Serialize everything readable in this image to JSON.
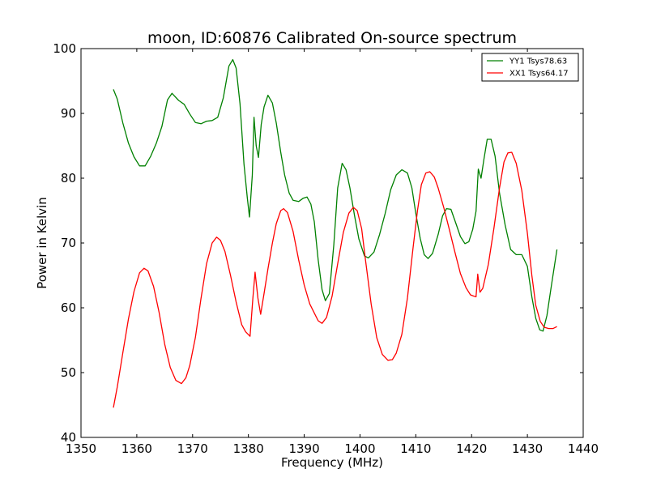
{
  "chart_data": {
    "type": "line",
    "title": "moon, ID:60876 Calibrated On-source spectrum",
    "xlabel": "Frequency (MHz)",
    "ylabel": "Power in Kelvin",
    "xlim": [
      1350,
      1440
    ],
    "ylim": [
      40,
      100
    ],
    "xticks": [
      1350,
      1360,
      1370,
      1380,
      1390,
      1400,
      1410,
      1420,
      1430,
      1440
    ],
    "yticks": [
      40,
      50,
      60,
      70,
      80,
      90,
      100
    ],
    "grid": false,
    "legend_position": "upper-right",
    "series": [
      {
        "name": "YY1 Tsys78.63",
        "color": "#008000",
        "x": [
          1355.8,
          1356.5,
          1357.5,
          1358.5,
          1359.5,
          1360.5,
          1361.5,
          1362.5,
          1363.5,
          1364.5,
          1365.5,
          1366.3,
          1367.5,
          1368.5,
          1369.5,
          1370.5,
          1371.5,
          1372.5,
          1373.5,
          1374.5,
          1375.5,
          1376.5,
          1377.2,
          1377.8,
          1378.5,
          1379.2,
          1379.8,
          1380.2,
          1380.7,
          1381.0,
          1381.4,
          1381.8,
          1382.3,
          1382.8,
          1383.5,
          1384.3,
          1385.0,
          1385.8,
          1386.5,
          1387.3,
          1388.0,
          1389.0,
          1389.8,
          1390.5,
          1391.2,
          1391.8,
          1392.5,
          1393.2,
          1393.8,
          1394.5,
          1395.3,
          1396.0,
          1396.8,
          1397.5,
          1398.2,
          1399.0,
          1399.8,
          1400.8,
          1401.5,
          1402.5,
          1403.5,
          1404.5,
          1405.5,
          1406.5,
          1407.5,
          1408.5,
          1409.3,
          1410.0,
          1410.8,
          1411.5,
          1412.2,
          1413.0,
          1414.0,
          1414.8,
          1415.5,
          1416.3,
          1417.2,
          1418.0,
          1418.8,
          1419.5,
          1420.2,
          1420.8,
          1421.2,
          1421.7,
          1422.2,
          1422.8,
          1423.5,
          1424.2,
          1425.0,
          1426.0,
          1427.0,
          1428.0,
          1429.0,
          1430.0,
          1430.8,
          1431.5,
          1432.2,
          1432.8,
          1433.5,
          1434.3,
          1435.3
        ],
        "values": [
          93.7,
          92.2,
          88.5,
          85.4,
          83.3,
          81.9,
          81.9,
          83.4,
          85.4,
          88.0,
          92.1,
          93.1,
          92.0,
          91.4,
          89.9,
          88.6,
          88.4,
          88.8,
          88.9,
          89.4,
          92.4,
          97.3,
          98.3,
          97.0,
          91.5,
          82.2,
          77.0,
          74.0,
          80.5,
          89.4,
          85.0,
          83.2,
          88.3,
          91.0,
          92.8,
          91.6,
          88.5,
          84.0,
          80.5,
          77.7,
          76.6,
          76.4,
          76.9,
          77.1,
          76.0,
          73.3,
          67.4,
          62.8,
          61.1,
          62.2,
          69.7,
          78.5,
          82.3,
          81.3,
          78.5,
          74.3,
          70.6,
          68.0,
          67.7,
          68.6,
          71.3,
          74.5,
          78.2,
          80.5,
          81.3,
          80.8,
          78.5,
          74.6,
          70.7,
          68.2,
          67.6,
          68.4,
          71.3,
          74.2,
          75.3,
          75.2,
          73.0,
          71.0,
          69.9,
          70.2,
          72.1,
          74.9,
          81.4,
          80.0,
          82.9,
          86.0,
          86.0,
          83.4,
          77.7,
          72.8,
          69.0,
          68.2,
          68.2,
          66.4,
          61.7,
          58.4,
          56.6,
          56.4,
          58.8,
          63.4,
          69.0
        ]
      },
      {
        "name": "XX1 Tsys64.17",
        "color": "#ff0000",
        "x": [
          1355.8,
          1356.5,
          1357.5,
          1358.5,
          1359.5,
          1360.5,
          1361.3,
          1362.0,
          1363.0,
          1364.0,
          1365.0,
          1366.0,
          1367.0,
          1368.0,
          1368.8,
          1369.5,
          1370.5,
          1371.5,
          1372.5,
          1373.5,
          1374.3,
          1375.0,
          1375.8,
          1376.8,
          1377.8,
          1378.8,
          1379.5,
          1380.3,
          1380.8,
          1381.2,
          1381.7,
          1382.2,
          1382.8,
          1383.5,
          1384.3,
          1385.0,
          1385.8,
          1386.3,
          1387.0,
          1388.0,
          1389.0,
          1390.0,
          1391.0,
          1391.8,
          1392.5,
          1393.2,
          1394.0,
          1395.0,
          1396.0,
          1397.0,
          1398.0,
          1398.8,
          1399.5,
          1400.3,
          1401.0,
          1402.0,
          1403.0,
          1404.0,
          1405.0,
          1405.8,
          1406.5,
          1407.5,
          1408.5,
          1409.5,
          1410.3,
          1411.0,
          1411.8,
          1412.5,
          1413.3,
          1414.0,
          1415.0,
          1416.0,
          1417.0,
          1418.0,
          1419.0,
          1419.8,
          1420.4,
          1420.8,
          1421.1,
          1421.5,
          1422.0,
          1423.0,
          1424.0,
          1425.0,
          1425.8,
          1426.5,
          1427.2,
          1428.0,
          1429.0,
          1430.0,
          1430.8,
          1431.5,
          1432.3,
          1433.0,
          1433.8,
          1434.6,
          1435.3
        ],
        "values": [
          44.6,
          47.8,
          53.1,
          58.3,
          62.5,
          65.4,
          66.1,
          65.7,
          63.3,
          59.3,
          54.4,
          50.8,
          48.8,
          48.3,
          49.2,
          51.1,
          55.4,
          61.4,
          66.8,
          70.0,
          70.9,
          70.4,
          68.7,
          65.0,
          60.9,
          57.4,
          56.3,
          55.6,
          61.5,
          65.5,
          61.5,
          59.0,
          62.2,
          66.0,
          70.0,
          73.0,
          75.0,
          75.3,
          74.7,
          71.8,
          67.4,
          63.5,
          60.6,
          59.2,
          58.0,
          57.6,
          58.5,
          61.8,
          66.8,
          71.6,
          74.6,
          75.5,
          75.0,
          72.2,
          67.3,
          60.6,
          55.4,
          52.8,
          51.9,
          52.0,
          53.0,
          55.9,
          61.5,
          69.2,
          75.0,
          79.0,
          80.8,
          81.0,
          80.2,
          78.5,
          75.5,
          72.1,
          68.6,
          65.3,
          63.1,
          62.0,
          61.8,
          61.7,
          65.2,
          62.4,
          63.0,
          66.7,
          72.3,
          78.5,
          82.5,
          83.9,
          84.0,
          82.3,
          78.1,
          71.5,
          65.0,
          60.4,
          57.9,
          57.0,
          56.8,
          56.8,
          57.1
        ]
      }
    ]
  }
}
